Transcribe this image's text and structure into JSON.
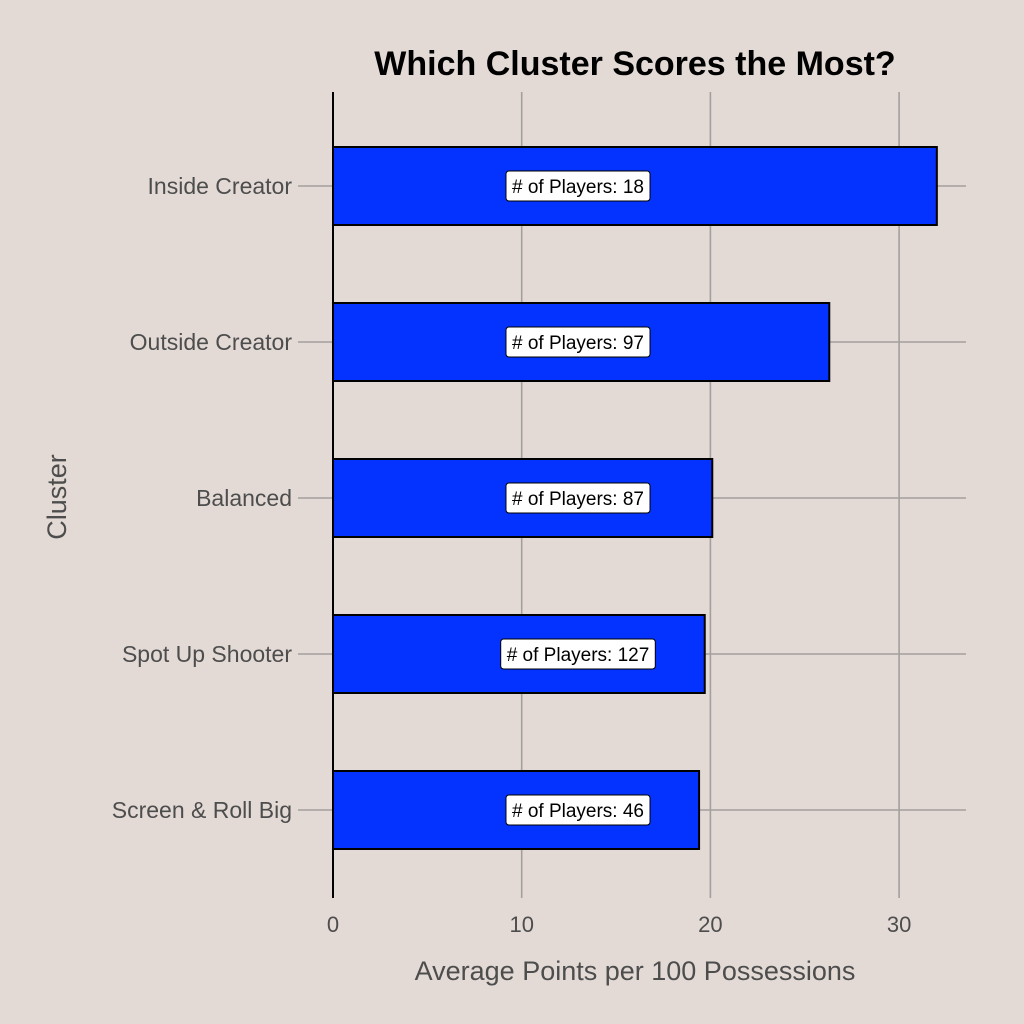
{
  "chart_data": {
    "type": "bar",
    "orientation": "horizontal",
    "title": "Which Cluster Scores the Most?",
    "xlabel": "Average Points per 100 Possessions",
    "ylabel": "Cluster",
    "categories": [
      "Inside Creator",
      "Outside Creator",
      "Balanced",
      "Spot Up Shooter",
      "Screen & Roll Big"
    ],
    "values": [
      32.0,
      26.3,
      20.1,
      19.7,
      19.4
    ],
    "annotations": [
      "# of Players: 18",
      "# of Players: 97",
      "# of Players: 87",
      "# of Players: 127",
      "# of Players: 46"
    ],
    "xticks": [
      0,
      10,
      20,
      30
    ],
    "xtick_labels": [
      "0",
      "10",
      "20",
      "30"
    ],
    "xlim": [
      0,
      33.5
    ],
    "bar_color": "#0433ff",
    "grid": true,
    "legend": "none"
  }
}
